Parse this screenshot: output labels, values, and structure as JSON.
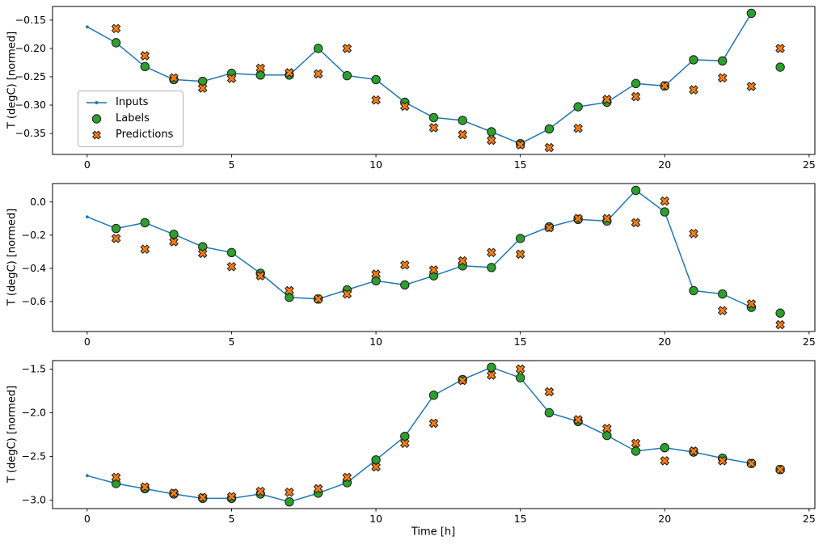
{
  "figure": {
    "xlabel": "Time [h]",
    "ylabel": "T (degC) [normed]",
    "background": "#ffffff",
    "colors": {
      "inputs": "#1f77b4",
      "labels": "#2ca02c",
      "predictions": "#ff7f0e",
      "edge": "#1c1c1c",
      "spine": "#000000"
    },
    "legend": {
      "position": "left-middle-of-first-subplot",
      "items": [
        {
          "label": "Inputs",
          "marker": "line-with-dot"
        },
        {
          "label": "Labels",
          "marker": "filled-circle"
        },
        {
          "label": "Predictions",
          "marker": "filled-x"
        }
      ]
    }
  },
  "chart_data": [
    {
      "type": "line",
      "subplot": 1,
      "title": "",
      "xlabel": "Time [h]",
      "ylabel": "T (degC) [normed]",
      "xlim": [
        -1.2,
        25.2
      ],
      "ylim": [
        -0.387,
        -0.126
      ],
      "xticks": [
        0,
        5,
        10,
        15,
        20,
        25
      ],
      "xtick_labels": [
        "0",
        "5",
        "10",
        "15",
        "20",
        "25"
      ],
      "yticks": [
        -0.15,
        -0.2,
        -0.25,
        -0.3,
        -0.35
      ],
      "ytick_labels": [
        "−0.15",
        "−0.20",
        "−0.25",
        "−0.30",
        "−0.35"
      ],
      "grid": false,
      "series": [
        {
          "name": "Inputs",
          "style": "line-with-dots",
          "x": [
            0,
            1,
            2,
            3,
            4,
            5,
            6,
            7,
            8,
            9,
            10,
            11,
            12,
            13,
            14,
            15,
            16,
            17,
            18,
            19,
            20,
            21,
            22,
            23
          ],
          "y": [
            -0.162,
            -0.19,
            -0.232,
            -0.255,
            -0.258,
            -0.244,
            -0.247,
            -0.247,
            -0.2,
            -0.248,
            -0.255,
            -0.295,
            -0.322,
            -0.327,
            -0.347,
            -0.368,
            -0.342,
            -0.303,
            -0.295,
            -0.262,
            -0.266,
            -0.22,
            -0.222,
            -0.138
          ]
        },
        {
          "name": "Labels",
          "style": "scatter-circle",
          "x": [
            1,
            2,
            3,
            4,
            5,
            6,
            7,
            8,
            9,
            10,
            11,
            12,
            13,
            14,
            15,
            16,
            17,
            18,
            19,
            20,
            21,
            22,
            23,
            24
          ],
          "y": [
            -0.19,
            -0.232,
            -0.255,
            -0.258,
            -0.244,
            -0.247,
            -0.247,
            -0.2,
            -0.248,
            -0.255,
            -0.295,
            -0.322,
            -0.327,
            -0.347,
            -0.368,
            -0.342,
            -0.303,
            -0.295,
            -0.262,
            -0.266,
            -0.22,
            -0.222,
            -0.138,
            -0.233
          ]
        },
        {
          "name": "Predictions",
          "style": "scatter-x",
          "x": [
            1,
            2,
            3,
            4,
            5,
            6,
            7,
            8,
            9,
            10,
            11,
            12,
            13,
            14,
            15,
            16,
            17,
            18,
            19,
            20,
            21,
            22,
            23,
            24
          ],
          "y": [
            -0.165,
            -0.213,
            -0.252,
            -0.27,
            -0.253,
            -0.235,
            -0.243,
            -0.245,
            -0.2,
            -0.291,
            -0.302,
            -0.34,
            -0.352,
            -0.362,
            -0.37,
            -0.375,
            -0.341,
            -0.29,
            -0.285,
            -0.266,
            -0.273,
            -0.252,
            -0.267,
            -0.2
          ]
        }
      ]
    },
    {
      "type": "line",
      "subplot": 2,
      "title": "",
      "xlabel": "Time [h]",
      "ylabel": "T (degC) [normed]",
      "xlim": [
        -1.2,
        25.2
      ],
      "ylim": [
        -0.781,
        0.111
      ],
      "xticks": [
        0,
        5,
        10,
        15,
        20,
        25
      ],
      "xtick_labels": [
        "0",
        "5",
        "10",
        "15",
        "20",
        "25"
      ],
      "yticks": [
        0.0,
        -0.2,
        -0.4,
        -0.6
      ],
      "ytick_labels": [
        "0.0",
        "−0.2",
        "−0.4",
        "−0.6"
      ],
      "grid": false,
      "series": [
        {
          "name": "Inputs",
          "style": "line-with-dots",
          "x": [
            0,
            1,
            2,
            3,
            4,
            5,
            6,
            7,
            8,
            9,
            10,
            11,
            12,
            13,
            14,
            15,
            16,
            17,
            18,
            19,
            20,
            21,
            22,
            23
          ],
          "y": [
            -0.09,
            -0.16,
            -0.125,
            -0.195,
            -0.27,
            -0.305,
            -0.43,
            -0.575,
            -0.585,
            -0.53,
            -0.475,
            -0.5,
            -0.445,
            -0.385,
            -0.395,
            -0.22,
            -0.15,
            -0.105,
            -0.115,
            0.07,
            -0.06,
            -0.535,
            -0.555,
            -0.635
          ]
        },
        {
          "name": "Labels",
          "style": "scatter-circle",
          "x": [
            1,
            2,
            3,
            4,
            5,
            6,
            7,
            8,
            9,
            10,
            11,
            12,
            13,
            14,
            15,
            16,
            17,
            18,
            19,
            20,
            21,
            22,
            23,
            24
          ],
          "y": [
            -0.16,
            -0.125,
            -0.195,
            -0.27,
            -0.305,
            -0.43,
            -0.575,
            -0.585,
            -0.53,
            -0.475,
            -0.5,
            -0.445,
            -0.385,
            -0.395,
            -0.22,
            -0.15,
            -0.105,
            -0.115,
            0.07,
            -0.06,
            -0.535,
            -0.555,
            -0.635,
            -0.67
          ]
        },
        {
          "name": "Predictions",
          "style": "scatter-x",
          "x": [
            1,
            2,
            3,
            4,
            5,
            6,
            7,
            8,
            9,
            10,
            11,
            12,
            13,
            14,
            15,
            16,
            17,
            18,
            19,
            20,
            21,
            22,
            23,
            24
          ],
          "y": [
            -0.22,
            -0.285,
            -0.24,
            -0.31,
            -0.39,
            -0.445,
            -0.535,
            -0.585,
            -0.555,
            -0.435,
            -0.38,
            -0.41,
            -0.355,
            -0.305,
            -0.315,
            -0.155,
            -0.1,
            -0.1,
            -0.125,
            0.005,
            -0.19,
            -0.655,
            -0.615,
            -0.74
          ]
        }
      ]
    },
    {
      "type": "line",
      "subplot": 3,
      "title": "",
      "xlabel": "Time [h]",
      "ylabel": "T (degC) [normed]",
      "xlim": [
        -1.2,
        25.2
      ],
      "ylim": [
        -3.097,
        -1.403
      ],
      "xticks": [
        0,
        5,
        10,
        15,
        20,
        25
      ],
      "xtick_labels": [
        "0",
        "5",
        "10",
        "15",
        "20",
        "25"
      ],
      "yticks": [
        -1.5,
        -2.0,
        -2.5,
        -3.0
      ],
      "ytick_labels": [
        "−1.5",
        "−2.0",
        "−2.5",
        "−3.0"
      ],
      "grid": false,
      "series": [
        {
          "name": "Inputs",
          "style": "line-with-dots",
          "x": [
            0,
            1,
            2,
            3,
            4,
            5,
            6,
            7,
            8,
            9,
            10,
            11,
            12,
            13,
            14,
            15,
            16,
            17,
            18,
            19,
            20,
            21,
            22,
            23
          ],
          "y": [
            -2.72,
            -2.81,
            -2.87,
            -2.93,
            -2.98,
            -2.98,
            -2.93,
            -3.02,
            -2.92,
            -2.8,
            -2.54,
            -2.27,
            -1.8,
            -1.62,
            -1.48,
            -1.6,
            -2.0,
            -2.1,
            -2.26,
            -2.44,
            -2.4,
            -2.45,
            -2.52,
            -2.58
          ]
        },
        {
          "name": "Labels",
          "style": "scatter-circle",
          "x": [
            1,
            2,
            3,
            4,
            5,
            6,
            7,
            8,
            9,
            10,
            11,
            12,
            13,
            14,
            15,
            16,
            17,
            18,
            19,
            20,
            21,
            22,
            23,
            24
          ],
          "y": [
            -2.81,
            -2.87,
            -2.93,
            -2.98,
            -2.98,
            -2.93,
            -3.02,
            -2.92,
            -2.8,
            -2.54,
            -2.27,
            -1.8,
            -1.62,
            -1.48,
            -1.6,
            -2.0,
            -2.1,
            -2.26,
            -2.44,
            -2.4,
            -2.45,
            -2.52,
            -2.58,
            -2.65
          ]
        },
        {
          "name": "Predictions",
          "style": "scatter-x",
          "x": [
            1,
            2,
            3,
            4,
            5,
            6,
            7,
            8,
            9,
            10,
            11,
            12,
            13,
            14,
            15,
            16,
            17,
            18,
            19,
            20,
            21,
            22,
            23,
            24
          ],
          "y": [
            -2.74,
            -2.85,
            -2.92,
            -2.97,
            -2.96,
            -2.9,
            -2.91,
            -2.87,
            -2.74,
            -2.62,
            -2.35,
            -2.12,
            -1.63,
            -1.57,
            -1.5,
            -1.76,
            -2.08,
            -2.18,
            -2.35,
            -2.55,
            -2.44,
            -2.55,
            -2.58,
            -2.65
          ]
        }
      ]
    }
  ]
}
